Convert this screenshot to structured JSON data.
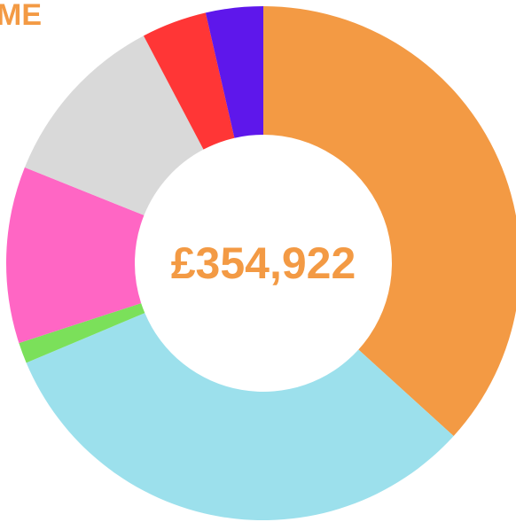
{
  "chart_data": {
    "type": "donut",
    "title": "ME",
    "center_label": "£354,922",
    "values": [
      36.7,
      31.9,
      1.3,
      11.1,
      11.2,
      4.1,
      3.6
    ],
    "colors": [
      "#f39a44",
      "#9ce0ec",
      "#7be05a",
      "#ff66c4",
      "#d9d9d9",
      "#ff3636",
      "#5e17eb"
    ]
  }
}
